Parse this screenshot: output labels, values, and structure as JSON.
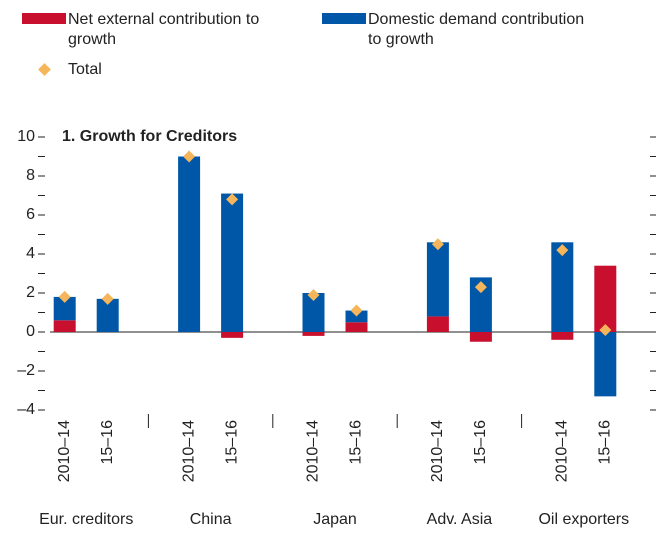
{
  "chart_data": {
    "type": "bar",
    "stacked": true,
    "title": "1. Growth for Creditors",
    "groups": [
      "Eur. creditors",
      "China",
      "Japan",
      "Adv. Asia",
      "Oil exporters"
    ],
    "categories": [
      "2010–14",
      "15–16",
      "2010–14",
      "15–16",
      "2010–14",
      "15–16",
      "2010–14",
      "15–16",
      "2010–14",
      "15–16"
    ],
    "series": [
      {
        "name": "Net external contribution to growth",
        "color": "#c8102e",
        "values": [
          0.6,
          0,
          0,
          -0.3,
          -0.2,
          0.5,
          0.8,
          -0.5,
          -0.4,
          3.4
        ]
      },
      {
        "name": "Domestic demand contribution to growth",
        "color": "#0057a8",
        "values": [
          1.2,
          1.7,
          9.0,
          7.1,
          2.0,
          0.6,
          3.8,
          2.8,
          4.6,
          -3.3
        ]
      },
      {
        "name": "Total",
        "color": "#f5b55a",
        "marker": "diamond",
        "values": [
          1.8,
          1.7,
          9.0,
          6.8,
          1.9,
          1.1,
          4.5,
          2.3,
          4.2,
          0.1
        ]
      }
    ],
    "ylim": [
      -4,
      10
    ],
    "yticks": [
      {
        "value": -4,
        "label": "–4"
      },
      {
        "value": -2,
        "label": "–2"
      },
      0,
      2,
      4,
      6,
      8,
      10
    ],
    "yminorticks": [
      -3,
      -1,
      1,
      3,
      5,
      7,
      9
    ]
  }
}
